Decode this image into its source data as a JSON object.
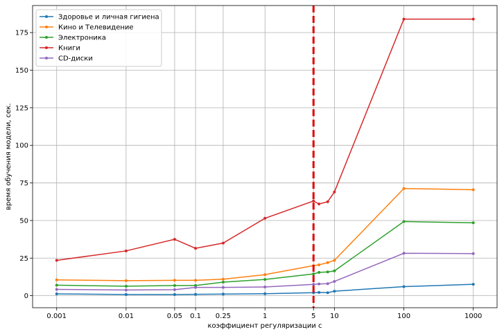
{
  "chart_data": {
    "type": "line",
    "xlabel": "коэффициент регуляризации с",
    "ylabel": "время обучения модели, сек.",
    "xscale": "log",
    "xlim": [
      0.00045,
      2200
    ],
    "ylim": [
      -8,
      193
    ],
    "grid": true,
    "legend_position": "top-left",
    "x_tick_labels": [
      "0.001",
      "0.01",
      "0.05",
      "0.1",
      "0.25",
      "1",
      "5",
      "10",
      "100",
      "1000"
    ],
    "x_ticks": [
      0.001,
      0.01,
      0.05,
      0.1,
      0.25,
      1,
      5,
      10,
      100,
      1000
    ],
    "y_ticks": [
      0,
      25,
      50,
      75,
      100,
      125,
      150,
      175
    ],
    "y_tick_labels": [
      "0",
      "25",
      "50",
      "75",
      "100",
      "125",
      "150",
      "175"
    ],
    "x": [
      0.001,
      0.01,
      0.05,
      0.1,
      0.25,
      1,
      5,
      6,
      8,
      10,
      100,
      1000
    ],
    "vline": {
      "x": 5,
      "color": "#e00000",
      "style": "dashed"
    },
    "series": [
      {
        "name": "Здоровье и личная гигиена",
        "color": "#1f77b4",
        "values": [
          1.2,
          0.8,
          0.8,
          0.9,
          1.1,
          1.3,
          2.0,
          2.2,
          2.0,
          3.0,
          6.0,
          7.6
        ]
      },
      {
        "name": "Кино и Телевидение",
        "color": "#ff7f0e",
        "values": [
          10.5,
          10.0,
          10.2,
          10.2,
          11.0,
          14.0,
          20.0,
          20.5,
          22.0,
          23.5,
          71.3,
          70.5
        ]
      },
      {
        "name": "Электроника",
        "color": "#2ca02c",
        "values": [
          7.0,
          6.3,
          6.8,
          6.8,
          9.0,
          10.8,
          14.5,
          15.5,
          15.8,
          16.5,
          49.3,
          48.5
        ]
      },
      {
        "name": "Книги",
        "color": "#d62728",
        "values": [
          23.5,
          29.8,
          37.5,
          31.5,
          35.0,
          51.5,
          63.0,
          61.0,
          62.5,
          69.0,
          184.0,
          184.0
        ]
      },
      {
        "name": "CD-диски",
        "color": "#9467bd",
        "values": [
          4.2,
          3.8,
          4.0,
          5.5,
          5.5,
          5.8,
          7.5,
          7.8,
          8.0,
          9.5,
          28.2,
          28.0
        ]
      }
    ]
  }
}
